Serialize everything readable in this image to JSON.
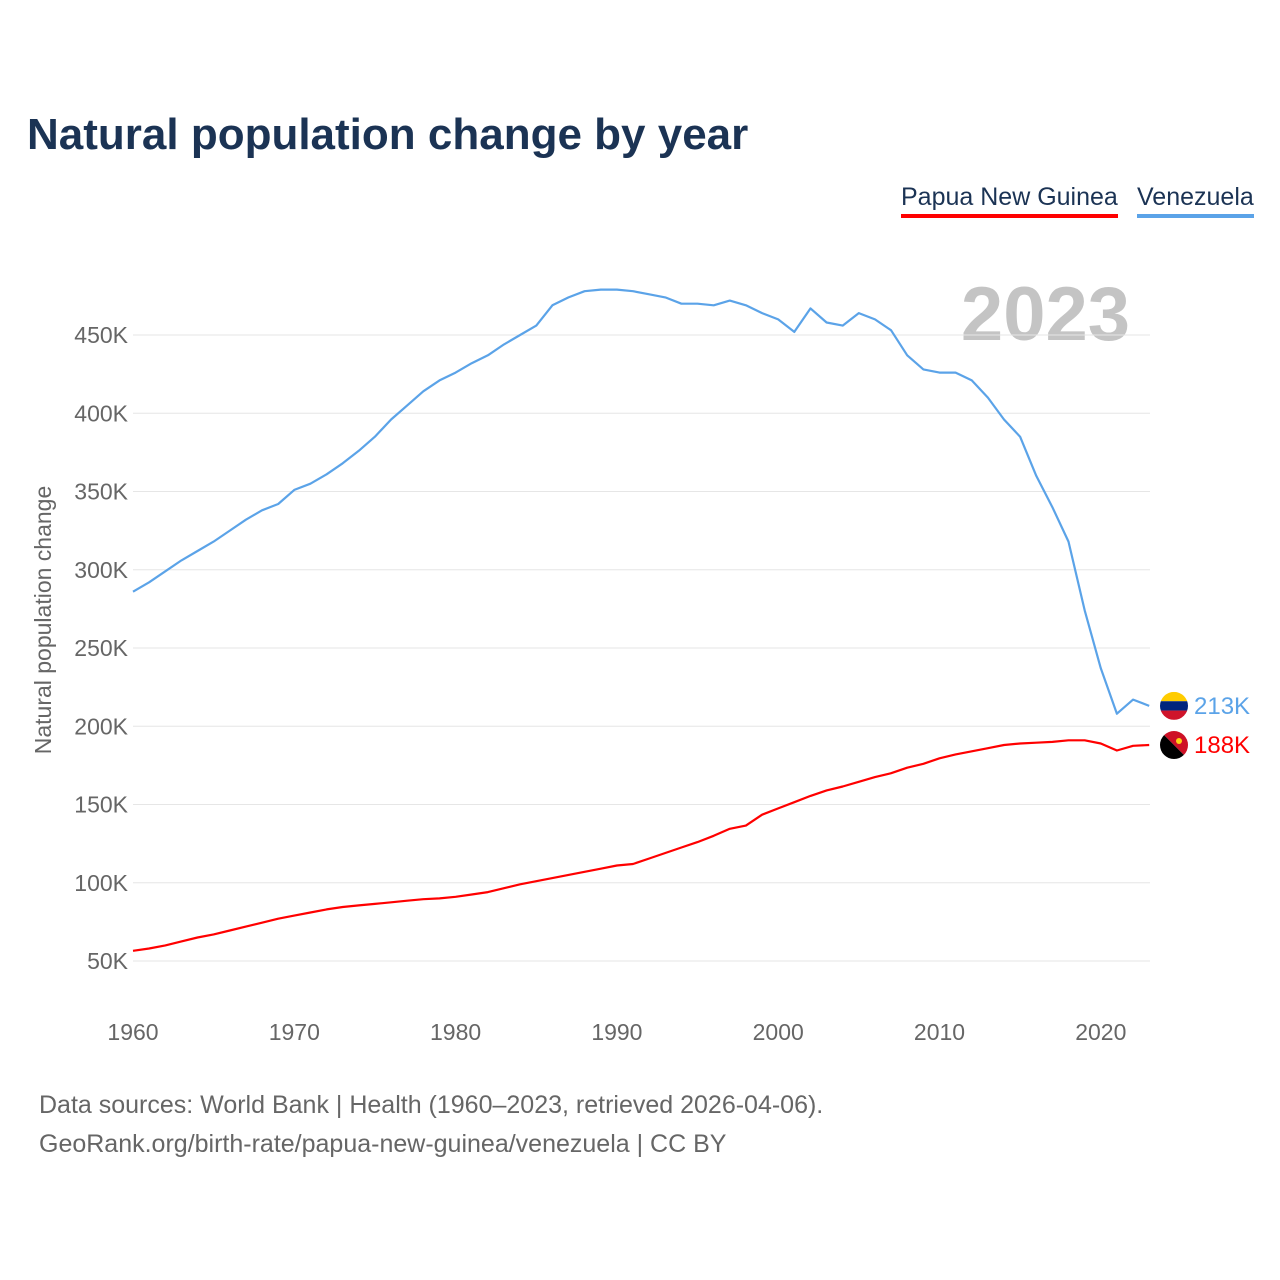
{
  "chart_data": {
    "type": "line",
    "title": "Natural population change by year",
    "ylabel": "Natural population change",
    "xlabel": "",
    "watermark_year": "2023",
    "ylim": [
      50000,
      480000
    ],
    "xlim": [
      1960,
      2023
    ],
    "y_ticks": [
      {
        "v": 50000,
        "label": "50K"
      },
      {
        "v": 100000,
        "label": "100K"
      },
      {
        "v": 150000,
        "label": "150K"
      },
      {
        "v": 200000,
        "label": "200K"
      },
      {
        "v": 250000,
        "label": "250K"
      },
      {
        "v": 300000,
        "label": "300K"
      },
      {
        "v": 350000,
        "label": "350K"
      },
      {
        "v": 400000,
        "label": "400K"
      },
      {
        "v": 450000,
        "label": "450K"
      }
    ],
    "x_ticks": [
      {
        "v": 1960,
        "label": "1960"
      },
      {
        "v": 1970,
        "label": "1970"
      },
      {
        "v": 1980,
        "label": "1980"
      },
      {
        "v": 1990,
        "label": "1990"
      },
      {
        "v": 2000,
        "label": "2000"
      },
      {
        "v": 2010,
        "label": "2010"
      },
      {
        "v": 2020,
        "label": "2020"
      }
    ],
    "grid": true,
    "legend_position": "top-right",
    "x_start": 1960,
    "series": [
      {
        "name": "Papua New Guinea",
        "color": "#ff0000",
        "end_label": "188K",
        "values": [
          56500,
          58000,
          60000,
          62500,
          65000,
          67000,
          69500,
          72000,
          74500,
          77000,
          79000,
          81000,
          83000,
          84500,
          85500,
          86500,
          87500,
          88500,
          89500,
          90000,
          91000,
          92500,
          94000,
          96500,
          99000,
          101000,
          103000,
          105000,
          107000,
          109000,
          111000,
          112000,
          115500,
          119000,
          122500,
          126000,
          130000,
          134500,
          136500,
          143500,
          147500,
          151500,
          155500,
          159000,
          161500,
          164500,
          167500,
          170000,
          173500,
          176000,
          179500,
          182000,
          184000,
          186000,
          188000,
          189000,
          189500,
          190000,
          191000,
          191000,
          189000,
          184500,
          187500,
          188000
        ]
      },
      {
        "name": "Venezuela",
        "color": "#5ba3e8",
        "end_label": "213K",
        "values": [
          286000,
          292000,
          299000,
          306000,
          312000,
          318000,
          325000,
          332000,
          338000,
          342000,
          351000,
          355000,
          361000,
          368000,
          376000,
          385000,
          396000,
          405000,
          414000,
          421000,
          426000,
          432000,
          437000,
          444000,
          450000,
          456000,
          469000,
          474000,
          478000,
          479000,
          479000,
          478000,
          476000,
          474000,
          470000,
          470000,
          469000,
          472000,
          469000,
          464000,
          460000,
          452000,
          467000,
          458000,
          456000,
          464000,
          460000,
          453000,
          437000,
          428000,
          426000,
          426000,
          421000,
          410000,
          396000,
          385000,
          360000,
          340000,
          318000,
          274000,
          237000,
          208000,
          217000,
          213000
        ]
      }
    ]
  },
  "footer": {
    "line1": "Data sources: World Bank | Health (1960–2023, retrieved 2026-04-06).",
    "line2": "GeoRank.org/birth-rate/papua-new-guinea/venezuela | CC BY"
  }
}
